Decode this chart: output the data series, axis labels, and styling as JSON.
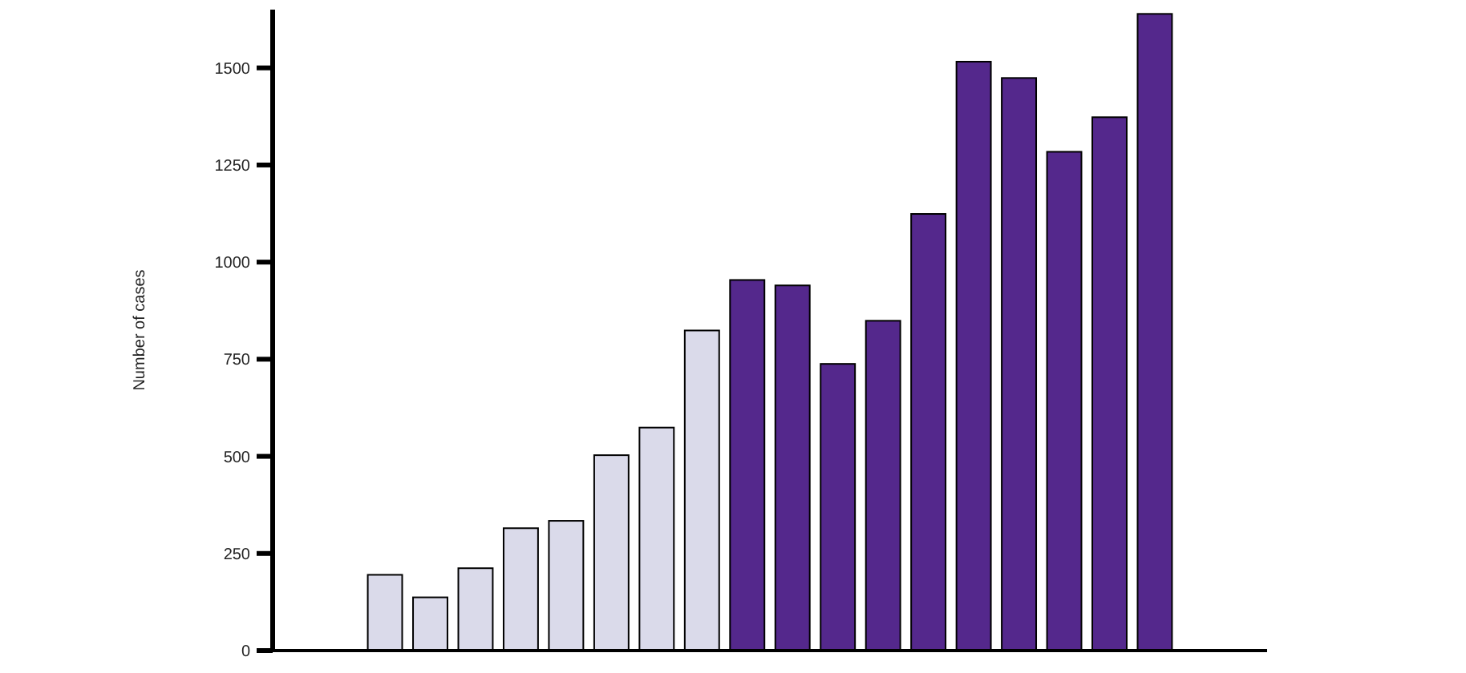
{
  "chart_data": {
    "type": "bar",
    "ylabel": "Number of cases",
    "categories": [
      null,
      null,
      null,
      null,
      null,
      null,
      null,
      null,
      null,
      null,
      null,
      null,
      null,
      null,
      null,
      null,
      null,
      null,
      null,
      null,
      null,
      null
    ],
    "values": [
      null,
      null,
      195,
      137,
      212,
      315,
      334,
      503,
      574,
      824,
      954,
      940,
      738,
      849,
      1124,
      1516,
      1474,
      1284,
      1373,
      1639,
      null,
      null
    ],
    "colors": [
      null,
      null,
      "#dadaea",
      "#dadaea",
      "#dadaea",
      "#dadaea",
      "#dadaea",
      "#dadaea",
      "#dadaea",
      "#dadaea",
      "#54288c",
      "#54288c",
      "#54288c",
      "#54288c",
      "#54288c",
      "#54288c",
      "#54288c",
      "#54288c",
      "#54288c",
      "#54288c",
      null,
      null
    ],
    "ylim": [
      0,
      1650
    ],
    "yticks": [
      0,
      250,
      500,
      750,
      1000,
      1250,
      1500
    ],
    "grid": false
  }
}
